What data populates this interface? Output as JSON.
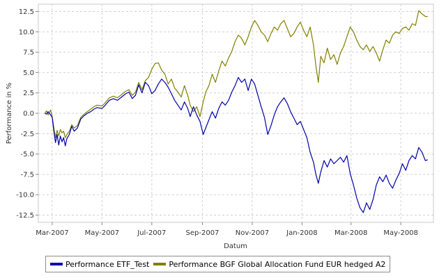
{
  "chart_data": {
    "type": "line",
    "title": "",
    "xlabel": "Datum",
    "ylabel": "Performance in %",
    "x_range": [
      "2007-02-12",
      "2008-06-10"
    ],
    "ylim": [
      -13.4,
      13.4
    ],
    "grid": true,
    "legend_position": "bottom",
    "x_ticks": [
      {
        "date": "2007-03-01",
        "label": "Mar-2007"
      },
      {
        "date": "2007-05-01",
        "label": "May-2007"
      },
      {
        "date": "2007-07-01",
        "label": "Jul-2007"
      },
      {
        "date": "2007-09-01",
        "label": "Sep-2007"
      },
      {
        "date": "2007-11-01",
        "label": "Nov-2007"
      },
      {
        "date": "2008-01-01",
        "label": "Jan-2008"
      },
      {
        "date": "2008-03-01",
        "label": "Mar-2008"
      },
      {
        "date": "2008-05-01",
        "label": "May-2008"
      }
    ],
    "y_ticks": [
      {
        "value": 12.5,
        "label": "12.5"
      },
      {
        "value": 10.0,
        "label": "10.0"
      },
      {
        "value": 7.5,
        "label": "7.5"
      },
      {
        "value": 5.0,
        "label": "5.0"
      },
      {
        "value": 2.5,
        "label": "2.5"
      },
      {
        "value": 0.0,
        "label": "0.0"
      },
      {
        "value": -2.5,
        "label": "-2.5"
      },
      {
        "value": -5.0,
        "label": "-5.0"
      },
      {
        "value": -7.5,
        "label": "-7.5"
      },
      {
        "value": -10.0,
        "label": "-10.0"
      },
      {
        "value": -12.5,
        "label": "-12.5"
      }
    ],
    "series": [
      {
        "name": "Performance ETF_Test",
        "color": "#0000aa",
        "points": [
          [
            "2007-02-20",
            0.0
          ],
          [
            "2007-02-22",
            -0.1
          ],
          [
            "2007-02-24",
            0.2
          ],
          [
            "2007-02-27",
            -0.2
          ],
          [
            "2007-03-01",
            -0.5
          ],
          [
            "2007-03-03",
            -2.2
          ],
          [
            "2007-03-05",
            -3.6
          ],
          [
            "2007-03-07",
            -2.6
          ],
          [
            "2007-03-09",
            -3.9
          ],
          [
            "2007-03-11",
            -2.8
          ],
          [
            "2007-03-13",
            -3.5
          ],
          [
            "2007-03-15",
            -3.0
          ],
          [
            "2007-03-17",
            -4.0
          ],
          [
            "2007-03-19",
            -3.1
          ],
          [
            "2007-03-22",
            -2.6
          ],
          [
            "2007-03-25",
            -1.6
          ],
          [
            "2007-03-28",
            -2.2
          ],
          [
            "2007-04-01",
            -1.8
          ],
          [
            "2007-04-05",
            -0.7
          ],
          [
            "2007-04-09",
            -0.3
          ],
          [
            "2007-04-13",
            0.0
          ],
          [
            "2007-04-17",
            0.2
          ],
          [
            "2007-04-21",
            0.5
          ],
          [
            "2007-04-25",
            0.7
          ],
          [
            "2007-05-01",
            0.6
          ],
          [
            "2007-05-05",
            1.0
          ],
          [
            "2007-05-10",
            1.6
          ],
          [
            "2007-05-15",
            1.8
          ],
          [
            "2007-05-20",
            1.6
          ],
          [
            "2007-05-25",
            2.0
          ],
          [
            "2007-05-30",
            2.4
          ],
          [
            "2007-06-03",
            2.6
          ],
          [
            "2007-06-07",
            1.8
          ],
          [
            "2007-06-11",
            2.2
          ],
          [
            "2007-06-15",
            3.5
          ],
          [
            "2007-06-19",
            2.5
          ],
          [
            "2007-06-23",
            3.8
          ],
          [
            "2007-06-27",
            3.4
          ],
          [
            "2007-07-01",
            2.4
          ],
          [
            "2007-07-05",
            2.8
          ],
          [
            "2007-07-09",
            3.6
          ],
          [
            "2007-07-13",
            4.2
          ],
          [
            "2007-07-17",
            3.8
          ],
          [
            "2007-07-21",
            3.2
          ],
          [
            "2007-07-25",
            2.4
          ],
          [
            "2007-07-29",
            1.6
          ],
          [
            "2007-08-02",
            1.0
          ],
          [
            "2007-08-06",
            0.4
          ],
          [
            "2007-08-10",
            1.4
          ],
          [
            "2007-08-14",
            0.6
          ],
          [
            "2007-08-17",
            -0.4
          ],
          [
            "2007-08-21",
            0.8
          ],
          [
            "2007-08-25",
            -0.2
          ],
          [
            "2007-08-29",
            -1.0
          ],
          [
            "2007-09-02",
            -2.6
          ],
          [
            "2007-09-05",
            -1.8
          ],
          [
            "2007-09-09",
            -0.8
          ],
          [
            "2007-09-13",
            0.2
          ],
          [
            "2007-09-17",
            -0.6
          ],
          [
            "2007-09-21",
            0.6
          ],
          [
            "2007-09-25",
            1.4
          ],
          [
            "2007-09-29",
            1.0
          ],
          [
            "2007-10-03",
            1.6
          ],
          [
            "2007-10-07",
            2.6
          ],
          [
            "2007-10-11",
            3.4
          ],
          [
            "2007-10-15",
            4.4
          ],
          [
            "2007-10-19",
            3.8
          ],
          [
            "2007-10-23",
            4.2
          ],
          [
            "2007-10-27",
            2.8
          ],
          [
            "2007-10-31",
            4.2
          ],
          [
            "2007-11-04",
            3.6
          ],
          [
            "2007-11-08",
            2.2
          ],
          [
            "2007-11-12",
            0.8
          ],
          [
            "2007-11-16",
            -0.5
          ],
          [
            "2007-11-20",
            -2.6
          ],
          [
            "2007-11-24",
            -1.5
          ],
          [
            "2007-11-28",
            -0.2
          ],
          [
            "2007-12-02",
            0.8
          ],
          [
            "2007-12-06",
            1.4
          ],
          [
            "2007-12-10",
            1.9
          ],
          [
            "2007-12-14",
            1.2
          ],
          [
            "2007-12-18",
            0.2
          ],
          [
            "2007-12-22",
            -0.6
          ],
          [
            "2007-12-26",
            -1.4
          ],
          [
            "2007-12-30",
            -1.0
          ],
          [
            "2008-01-03",
            -2.0
          ],
          [
            "2008-01-07",
            -3.0
          ],
          [
            "2008-01-11",
            -4.8
          ],
          [
            "2008-01-15",
            -6.0
          ],
          [
            "2008-01-18",
            -7.5
          ],
          [
            "2008-01-21",
            -8.6
          ],
          [
            "2008-01-24",
            -7.2
          ],
          [
            "2008-01-28",
            -5.8
          ],
          [
            "2008-02-01",
            -6.6
          ],
          [
            "2008-02-05",
            -5.6
          ],
          [
            "2008-02-09",
            -6.2
          ],
          [
            "2008-02-13",
            -5.8
          ],
          [
            "2008-02-17",
            -5.4
          ],
          [
            "2008-02-21",
            -6.0
          ],
          [
            "2008-02-25",
            -5.2
          ],
          [
            "2008-02-29",
            -7.4
          ],
          [
            "2008-03-04",
            -8.8
          ],
          [
            "2008-03-08",
            -10.4
          ],
          [
            "2008-03-12",
            -11.6
          ],
          [
            "2008-03-16",
            -12.2
          ],
          [
            "2008-03-20",
            -11.0
          ],
          [
            "2008-03-24",
            -11.8
          ],
          [
            "2008-03-28",
            -10.6
          ],
          [
            "2008-04-01",
            -8.8
          ],
          [
            "2008-04-05",
            -7.8
          ],
          [
            "2008-04-09",
            -8.4
          ],
          [
            "2008-04-13",
            -7.6
          ],
          [
            "2008-04-17",
            -8.6
          ],
          [
            "2008-04-21",
            -9.2
          ],
          [
            "2008-04-25",
            -8.2
          ],
          [
            "2008-04-29",
            -7.4
          ],
          [
            "2008-05-03",
            -6.2
          ],
          [
            "2008-05-07",
            -7.0
          ],
          [
            "2008-05-11",
            -5.8
          ],
          [
            "2008-05-15",
            -5.2
          ],
          [
            "2008-05-19",
            -5.6
          ],
          [
            "2008-05-23",
            -4.2
          ],
          [
            "2008-05-27",
            -4.8
          ],
          [
            "2008-05-31",
            -5.8
          ],
          [
            "2008-06-03",
            -5.7
          ]
        ]
      },
      {
        "name": "Performance BGF Global Allocation Fund EUR hedged A2",
        "color": "#808000",
        "points": [
          [
            "2007-02-20",
            0.0
          ],
          [
            "2007-02-22",
            0.3
          ],
          [
            "2007-02-24",
            -0.2
          ],
          [
            "2007-02-27",
            0.4
          ],
          [
            "2007-03-01",
            -0.4
          ],
          [
            "2007-03-03",
            -1.8
          ],
          [
            "2007-03-05",
            -3.0
          ],
          [
            "2007-03-07",
            -2.1
          ],
          [
            "2007-03-09",
            -2.8
          ],
          [
            "2007-03-11",
            -2.0
          ],
          [
            "2007-03-13",
            -2.4
          ],
          [
            "2007-03-15",
            -2.2
          ],
          [
            "2007-03-17",
            -3.0
          ],
          [
            "2007-03-19",
            -2.6
          ],
          [
            "2007-03-22",
            -2.2
          ],
          [
            "2007-03-25",
            -1.4
          ],
          [
            "2007-03-28",
            -1.8
          ],
          [
            "2007-04-01",
            -1.5
          ],
          [
            "2007-04-05",
            -0.5
          ],
          [
            "2007-04-09",
            -0.1
          ],
          [
            "2007-04-13",
            0.2
          ],
          [
            "2007-04-17",
            0.5
          ],
          [
            "2007-04-21",
            0.8
          ],
          [
            "2007-04-25",
            1.0
          ],
          [
            "2007-05-01",
            0.9
          ],
          [
            "2007-05-05",
            1.3
          ],
          [
            "2007-05-10",
            1.9
          ],
          [
            "2007-05-15",
            2.1
          ],
          [
            "2007-05-20",
            1.9
          ],
          [
            "2007-05-25",
            2.3
          ],
          [
            "2007-05-30",
            2.7
          ],
          [
            "2007-06-03",
            2.9
          ],
          [
            "2007-06-07",
            2.2
          ],
          [
            "2007-06-11",
            2.6
          ],
          [
            "2007-06-15",
            3.8
          ],
          [
            "2007-06-19",
            2.9
          ],
          [
            "2007-06-23",
            4.0
          ],
          [
            "2007-06-27",
            4.4
          ],
          [
            "2007-07-01",
            5.4
          ],
          [
            "2007-07-05",
            6.1
          ],
          [
            "2007-07-09",
            6.2
          ],
          [
            "2007-07-13",
            5.3
          ],
          [
            "2007-07-17",
            4.8
          ],
          [
            "2007-07-21",
            3.6
          ],
          [
            "2007-07-25",
            4.2
          ],
          [
            "2007-07-29",
            3.1
          ],
          [
            "2007-08-02",
            2.6
          ],
          [
            "2007-08-06",
            2.0
          ],
          [
            "2007-08-10",
            3.4
          ],
          [
            "2007-08-14",
            2.2
          ],
          [
            "2007-08-17",
            1.0
          ],
          [
            "2007-08-21",
            0.2
          ],
          [
            "2007-08-25",
            0.8
          ],
          [
            "2007-08-29",
            -0.4
          ],
          [
            "2007-09-02",
            1.4
          ],
          [
            "2007-09-05",
            2.6
          ],
          [
            "2007-09-09",
            3.4
          ],
          [
            "2007-09-13",
            4.8
          ],
          [
            "2007-09-17",
            3.8
          ],
          [
            "2007-09-21",
            5.2
          ],
          [
            "2007-09-25",
            6.4
          ],
          [
            "2007-09-29",
            5.8
          ],
          [
            "2007-10-03",
            6.8
          ],
          [
            "2007-10-07",
            7.6
          ],
          [
            "2007-10-11",
            8.8
          ],
          [
            "2007-10-15",
            9.6
          ],
          [
            "2007-10-19",
            9.2
          ],
          [
            "2007-10-23",
            8.4
          ],
          [
            "2007-10-27",
            9.4
          ],
          [
            "2007-10-31",
            10.6
          ],
          [
            "2007-11-04",
            11.4
          ],
          [
            "2007-11-08",
            10.8
          ],
          [
            "2007-11-12",
            10.0
          ],
          [
            "2007-11-16",
            9.6
          ],
          [
            "2007-11-20",
            8.8
          ],
          [
            "2007-11-24",
            9.8
          ],
          [
            "2007-11-28",
            10.6
          ],
          [
            "2007-12-02",
            10.2
          ],
          [
            "2007-12-06",
            11.0
          ],
          [
            "2007-12-10",
            11.4
          ],
          [
            "2007-12-14",
            10.4
          ],
          [
            "2007-12-18",
            9.4
          ],
          [
            "2007-12-22",
            9.8
          ],
          [
            "2007-12-26",
            10.6
          ],
          [
            "2007-12-30",
            11.2
          ],
          [
            "2008-01-03",
            10.2
          ],
          [
            "2008-01-07",
            9.4
          ],
          [
            "2008-01-11",
            10.6
          ],
          [
            "2008-01-15",
            8.4
          ],
          [
            "2008-01-18",
            5.8
          ],
          [
            "2008-01-21",
            3.8
          ],
          [
            "2008-01-24",
            7.0
          ],
          [
            "2008-01-28",
            6.2
          ],
          [
            "2008-02-01",
            8.0
          ],
          [
            "2008-02-05",
            6.6
          ],
          [
            "2008-02-09",
            7.2
          ],
          [
            "2008-02-13",
            6.0
          ],
          [
            "2008-02-17",
            7.4
          ],
          [
            "2008-02-21",
            8.2
          ],
          [
            "2008-02-25",
            9.4
          ],
          [
            "2008-02-29",
            10.6
          ],
          [
            "2008-03-04",
            10.0
          ],
          [
            "2008-03-08",
            9.0
          ],
          [
            "2008-03-12",
            8.2
          ],
          [
            "2008-03-16",
            7.8
          ],
          [
            "2008-03-20",
            8.4
          ],
          [
            "2008-03-24",
            7.6
          ],
          [
            "2008-03-28",
            8.2
          ],
          [
            "2008-04-01",
            7.4
          ],
          [
            "2008-04-05",
            6.4
          ],
          [
            "2008-04-09",
            7.8
          ],
          [
            "2008-04-13",
            9.0
          ],
          [
            "2008-04-17",
            8.6
          ],
          [
            "2008-04-21",
            9.6
          ],
          [
            "2008-04-25",
            10.0
          ],
          [
            "2008-04-29",
            9.8
          ],
          [
            "2008-05-03",
            10.4
          ],
          [
            "2008-05-07",
            10.6
          ],
          [
            "2008-05-11",
            10.2
          ],
          [
            "2008-05-15",
            11.0
          ],
          [
            "2008-05-19",
            10.8
          ],
          [
            "2008-05-23",
            12.6
          ],
          [
            "2008-05-27",
            12.2
          ],
          [
            "2008-05-31",
            11.9
          ],
          [
            "2008-06-03",
            11.9
          ]
        ]
      }
    ]
  }
}
